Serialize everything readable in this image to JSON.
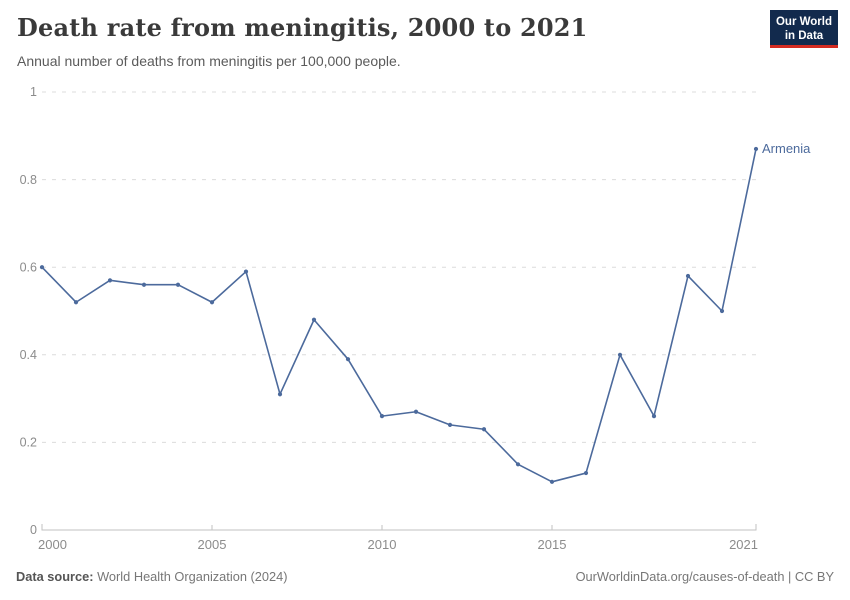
{
  "header": {
    "title": "Death rate from meningitis, 2000 to 2021",
    "subtitle": "Annual number of deaths from meningitis per 100,000 people."
  },
  "logo": {
    "line1": "Our World",
    "line2": "in Data",
    "bg_color": "#122A4D",
    "accent_color": "#D42B21"
  },
  "chart_data": {
    "type": "line",
    "title": "Death rate from meningitis, 2000 to 2021",
    "xlabel": "",
    "ylabel": "",
    "x": [
      2000,
      2001,
      2002,
      2003,
      2004,
      2005,
      2006,
      2007,
      2008,
      2009,
      2010,
      2011,
      2012,
      2013,
      2014,
      2015,
      2016,
      2017,
      2018,
      2019,
      2020,
      2021
    ],
    "series": [
      {
        "name": "Armenia",
        "color": "#4C6A9C",
        "values": [
          0.6,
          0.52,
          0.57,
          0.56,
          0.56,
          0.52,
          0.59,
          0.31,
          0.48,
          0.39,
          0.26,
          0.27,
          0.24,
          0.23,
          0.15,
          0.11,
          0.13,
          0.4,
          0.26,
          0.58,
          0.5,
          0.87
        ]
      }
    ],
    "end_label": "Armenia",
    "xlim": [
      2000,
      2021
    ],
    "ylim": [
      0,
      1
    ],
    "x_ticks": [
      2000,
      2005,
      2010,
      2015,
      2021
    ],
    "x_tick_labels": [
      "2000",
      "2005",
      "2010",
      "2015",
      "2021"
    ],
    "y_ticks": [
      0,
      0.2,
      0.4,
      0.6,
      0.8,
      1
    ],
    "y_tick_labels": [
      "0",
      "0.2",
      "0.4",
      "0.6",
      "0.8",
      "1"
    ],
    "grid": "horizontal dashed",
    "legend_position": "end-of-line"
  },
  "footer": {
    "source_label": "Data source:",
    "source_text": " World Health Organization (2024)",
    "rights": "OurWorldinData.org/causes-of-death | CC BY"
  },
  "colors": {
    "line": "#4C6A9C",
    "grid": "#DCDCDC",
    "axis": "#C2C2C2",
    "tick_label": "#8C8C8C",
    "title": "#3A3A3A",
    "subtitle": "#5B5B5B",
    "footer": "#777777"
  }
}
